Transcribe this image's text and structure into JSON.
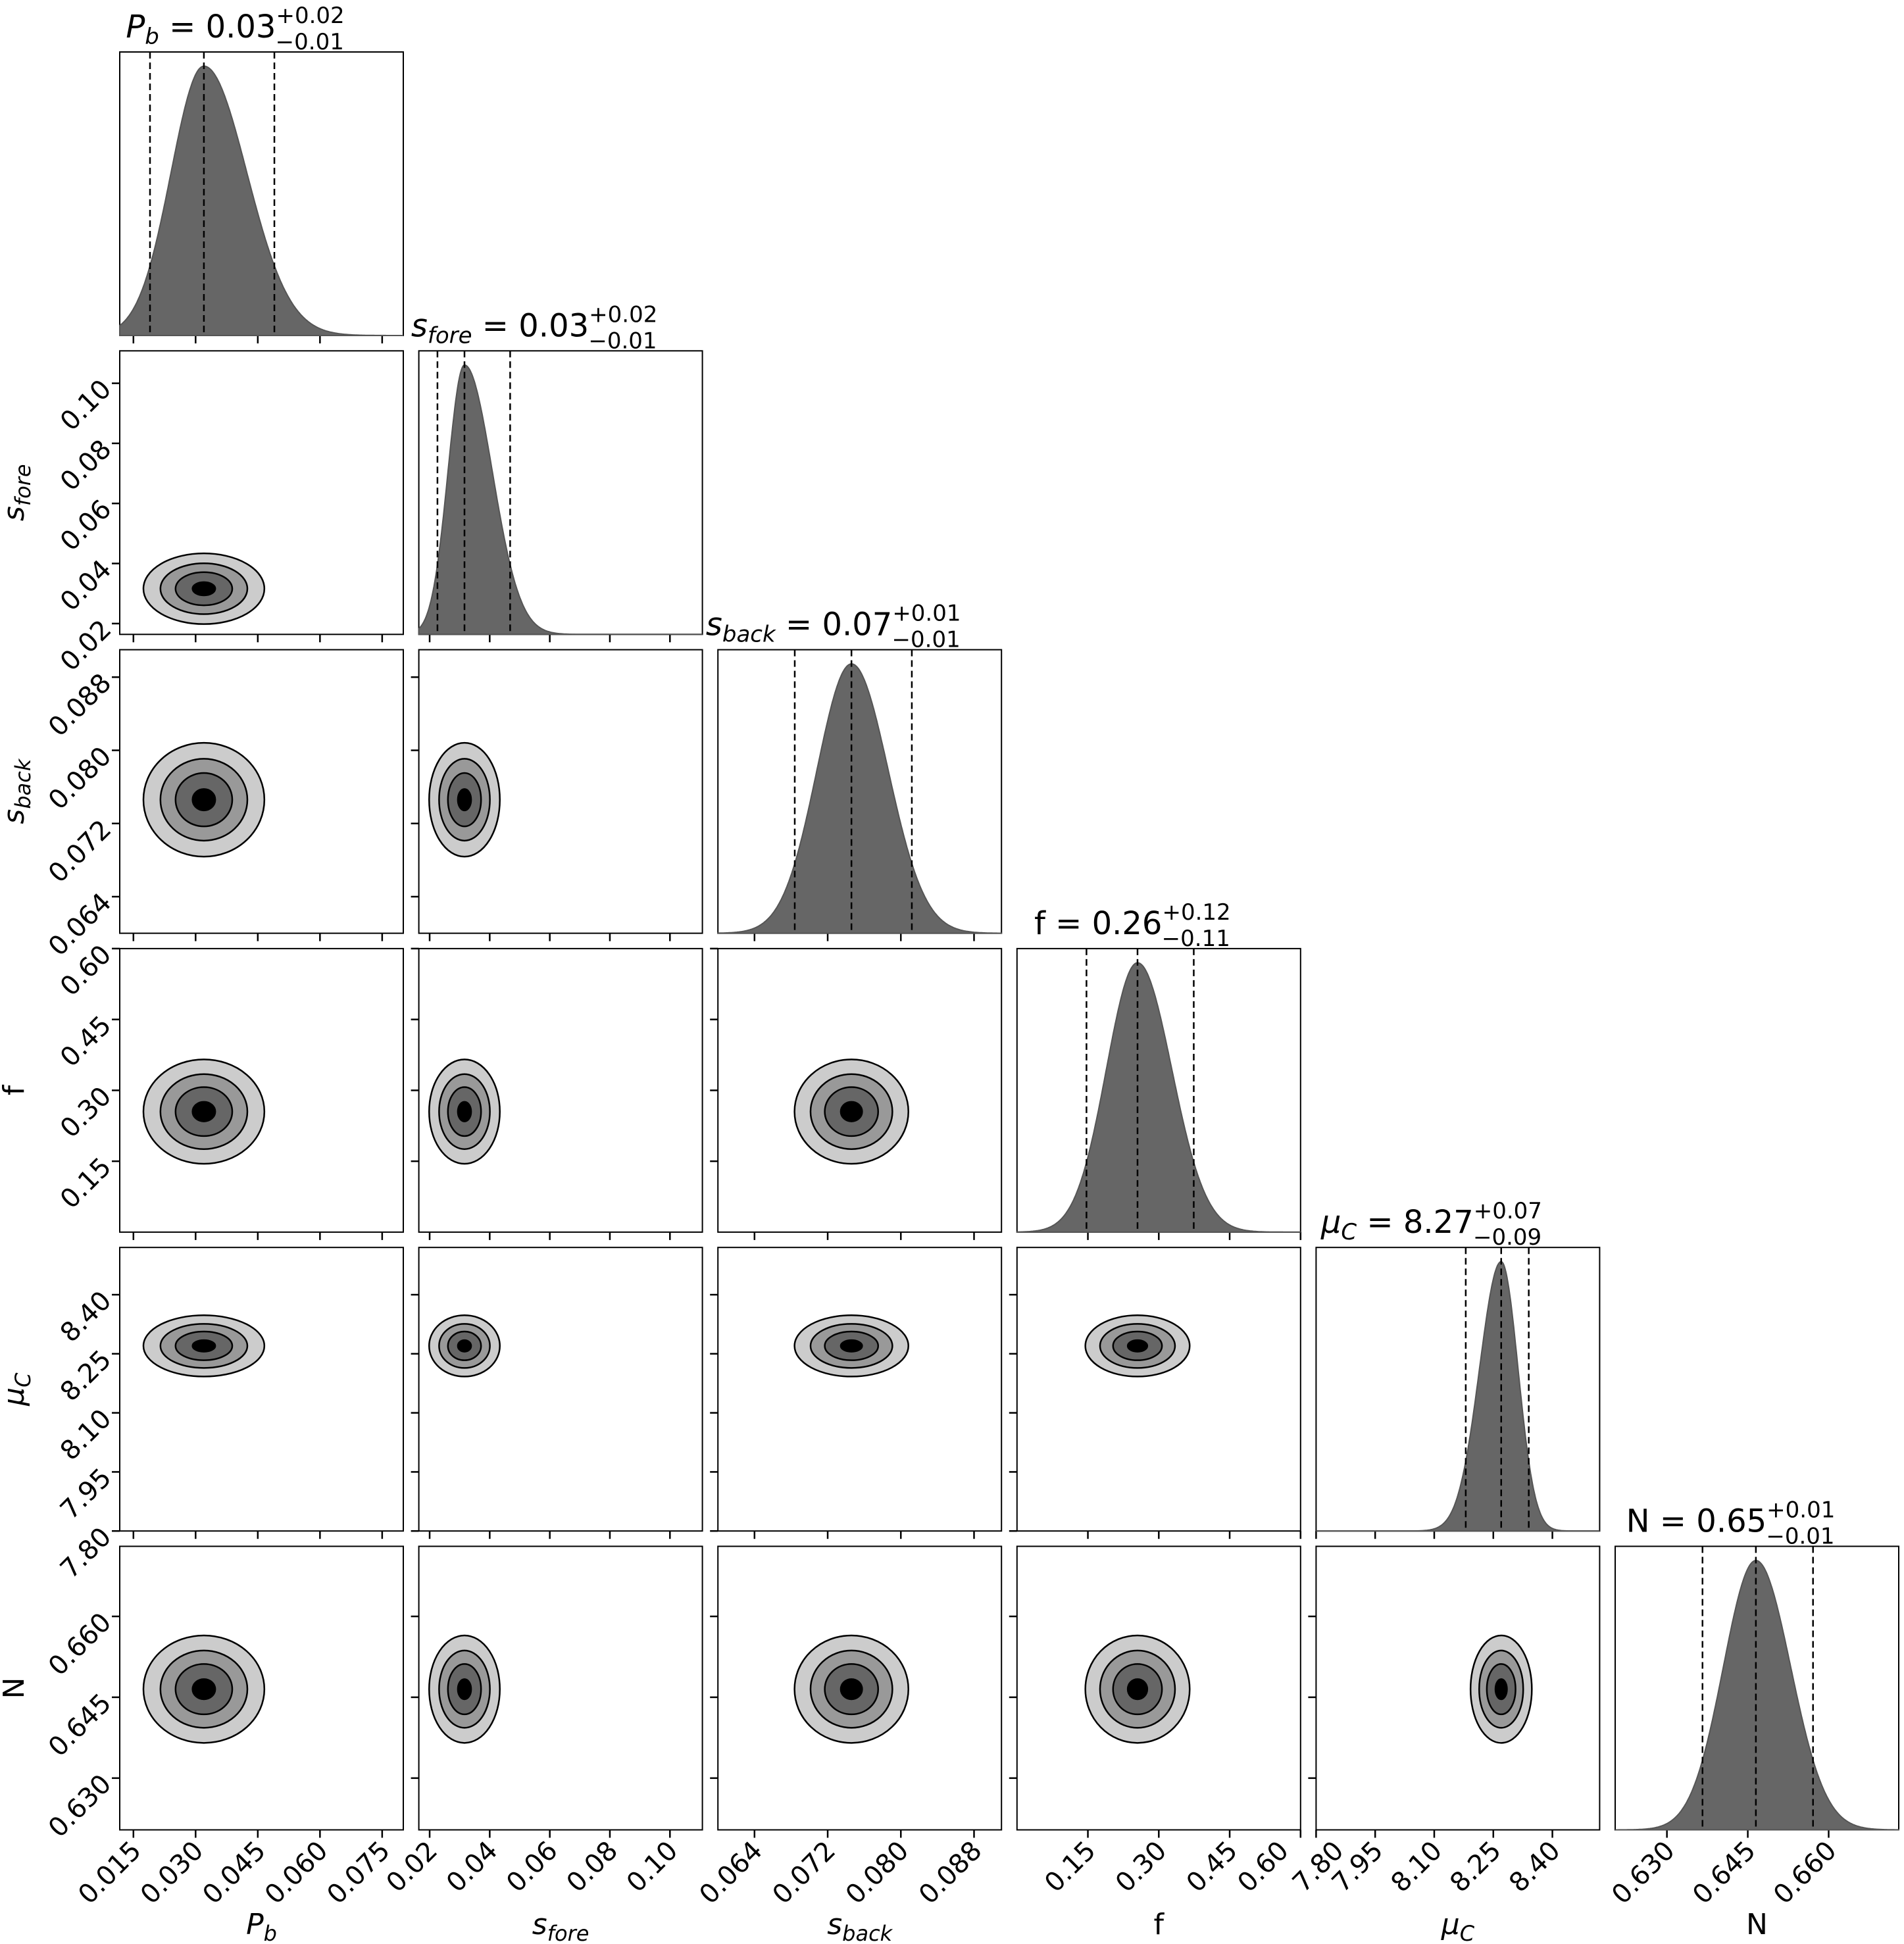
{
  "chart_data": {
    "type": "corner",
    "title": "",
    "quantile_lines": "dashed",
    "contour_levels": 4,
    "contour_colors": [
      "#cccccc",
      "#999999",
      "#666666",
      "#000000"
    ],
    "histogram_color": "#666666",
    "params": [
      {
        "id": "Pb",
        "name": "P",
        "sub": "b",
        "italic": true,
        "range": [
          0.0117,
          0.0801
        ],
        "ticks": [
          "0.015",
          "0.030",
          "0.045",
          "0.060",
          "0.075"
        ],
        "median": 0.032,
        "lo": 0.019,
        "hi": 0.049,
        "title_value": "0.03",
        "title_plus": "+0.02",
        "title_minus": "−0.01"
      },
      {
        "id": "sfore",
        "name": "s",
        "sub": "fore",
        "italic": true,
        "range": [
          0.0164,
          0.1108
        ],
        "ticks": [
          "0.02",
          "0.04",
          "0.06",
          "0.08",
          "0.10"
        ],
        "median": 0.0316,
        "lo": 0.0226,
        "hi": 0.0468,
        "title_value": "0.03",
        "title_plus": "+0.02",
        "title_minus": "−0.01"
      },
      {
        "id": "sback",
        "name": "s",
        "sub": "back",
        "italic": true,
        "range": [
          0.06,
          0.091
        ],
        "ticks": [
          "0.064",
          "0.072",
          "0.080",
          "0.088"
        ],
        "median": 0.0746,
        "lo": 0.0684,
        "hi": 0.0812,
        "title_value": "0.07",
        "title_plus": "+0.01",
        "title_minus": "−0.01"
      },
      {
        "id": "f",
        "name": "f",
        "sub": "",
        "italic": false,
        "range": [
          0.0,
          0.6
        ],
        "ticks": [
          "0.15",
          "0.30",
          "0.45",
          "0.60"
        ],
        "median": 0.255,
        "lo": 0.147,
        "hi": 0.374,
        "title_value": "0.26",
        "title_plus": "+0.12",
        "title_minus": "−0.11"
      },
      {
        "id": "muC",
        "name": "μ",
        "sub": "C",
        "italic": true,
        "range": [
          7.8,
          8.52
        ],
        "ticks": [
          "7.80",
          "7.95",
          "8.10",
          "8.25",
          "8.40"
        ],
        "median": 8.27,
        "lo": 8.18,
        "hi": 8.34,
        "title_value": "8.27",
        "title_plus": "+0.07",
        "title_minus": "−0.09"
      },
      {
        "id": "N",
        "name": "N",
        "sub": "",
        "italic": false,
        "range": [
          0.6204,
          0.673
        ],
        "ticks": [
          "0.630",
          "0.645",
          "0.660"
        ],
        "median": 0.6465,
        "lo": 0.6366,
        "hi": 0.6571,
        "title_value": "0.65",
        "title_plus": "+0.01",
        "title_minus": "−0.01"
      }
    ]
  }
}
